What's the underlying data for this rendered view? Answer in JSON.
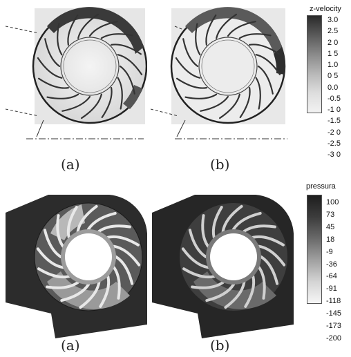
{
  "figure_top": {
    "captions": [
      "(a)",
      "(b)"
    ],
    "colorbar": {
      "title": "z-velocity",
      "ticks": [
        "3.0",
        "2.5",
        "2 0",
        "1 5",
        "1.0",
        "0 5",
        "0.0",
        "-0.5",
        "-1 0",
        "-1.5",
        "-2 0",
        "-2.5",
        "-3 0"
      ],
      "colors": [
        "#2a2a2a",
        "#5a5a5a",
        "#8a8a8a",
        "#b8b8b8",
        "#dedede",
        "#f2f2f2"
      ]
    }
  },
  "figure_bottom": {
    "captions": [
      "(a)",
      "(b)"
    ],
    "colorbar": {
      "title": "pressura",
      "ticks": [
        "100",
        "73",
        "45",
        "18",
        "-9",
        "-36",
        "-64",
        "-91",
        "-118",
        "-145",
        "-173",
        "-200"
      ],
      "colors": [
        "#1e1e1e",
        "#3c3c3c",
        "#6a6a6a",
        "#a0a0a0",
        "#d4d4d4",
        "#f6f6f6"
      ]
    }
  }
}
